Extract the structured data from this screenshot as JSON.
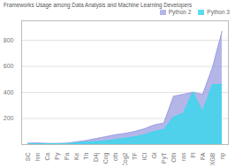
{
  "chart_data": {
    "type": "area",
    "title": "Frameworks Usage among Data Analysis and Machine Learning Developers",
    "categories": [
      "SC",
      "hm",
      "Ca",
      "Py",
      "Pa",
      "Ke",
      "Th",
      "D4j",
      "Cog",
      "oth",
      "Cog2",
      "TF",
      "ICI",
      "Gl",
      "PyT",
      "Oth",
      "ras",
      "Fl",
      "FA",
      "XGB",
      "np"
    ],
    "series": [
      {
        "name": "Python 2",
        "color": "#9b9de0",
        "values": [
          10,
          12,
          8,
          8,
          10,
          20,
          30,
          45,
          60,
          75,
          85,
          100,
          120,
          150,
          165,
          370,
          385,
          400,
          385,
          590,
          870
        ]
      },
      {
        "name": "Python 3",
        "color": "#3dd6ec",
        "values": [
          5,
          6,
          5,
          5,
          6,
          12,
          18,
          22,
          28,
          38,
          48,
          60,
          75,
          100,
          115,
          210,
          240,
          405,
          255,
          460,
          460
        ]
      }
    ],
    "ylim": [
      0,
      950
    ],
    "yticks": [
      200,
      400,
      600,
      800
    ],
    "grid": true,
    "stacked": false,
    "legend": "upper right"
  }
}
